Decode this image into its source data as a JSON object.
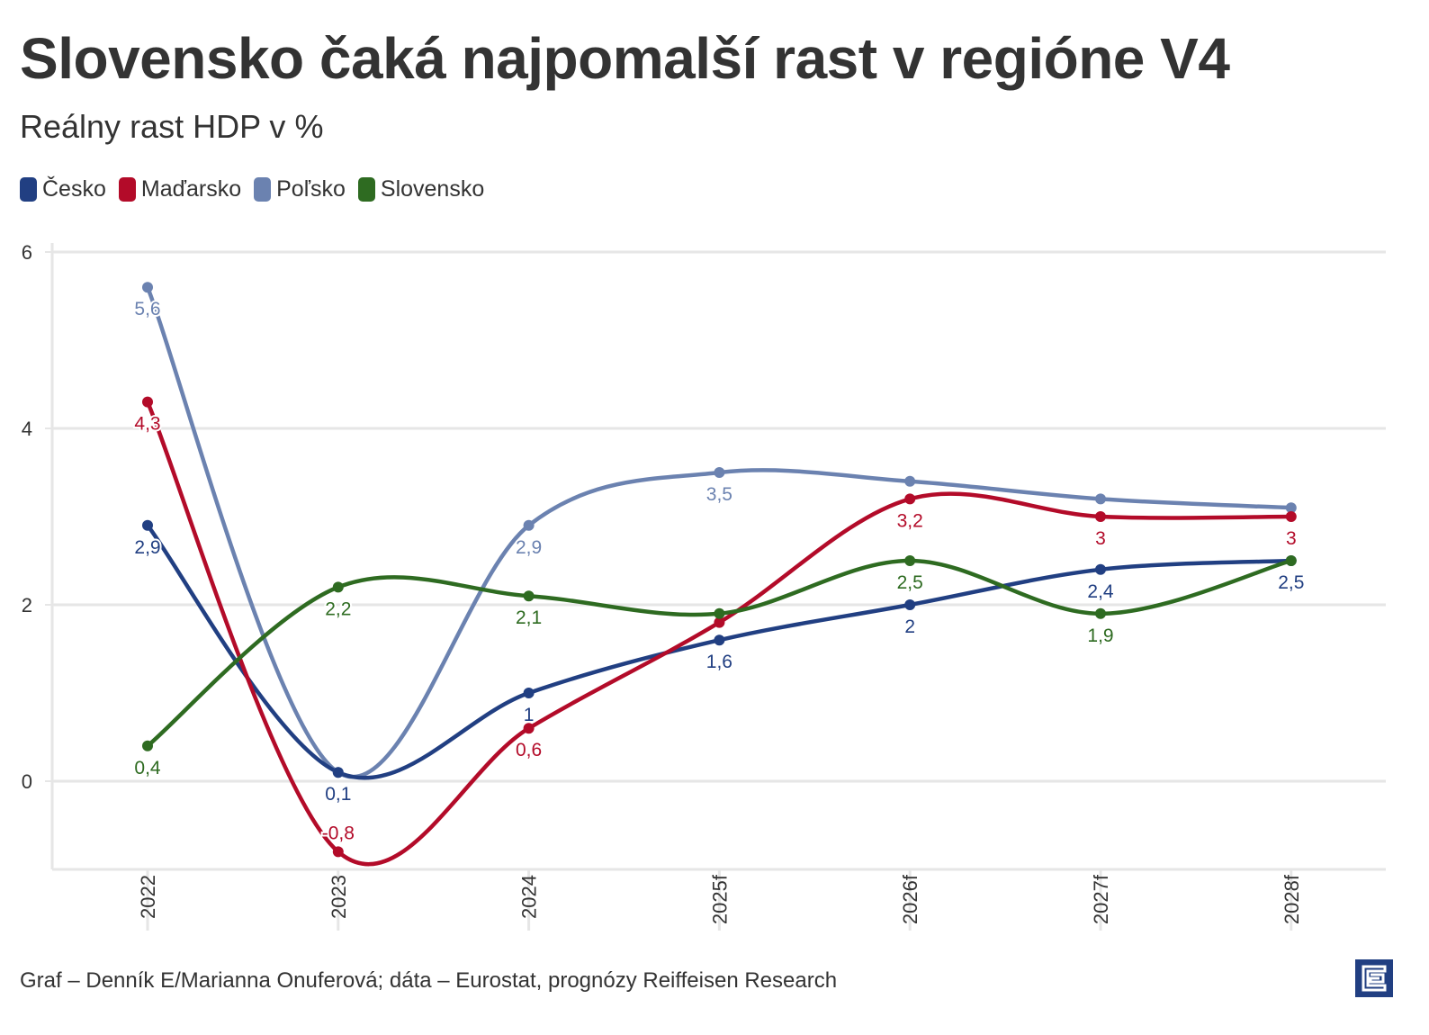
{
  "title": "Slovensko čaká najpomalší rast v regióne V4",
  "subtitle": "Reálny rast HDP v %",
  "footer": "Graf – Denník E/Marianna Onuferová; dáta – Eurostat, prognózy Reiffeisen Research",
  "chart_data": {
    "type": "line",
    "title": "Slovensko čaká najpomalší rast v regióne V4",
    "subtitle": "Reálny rast HDP v %",
    "xlabel": "",
    "ylabel": "",
    "categories": [
      "2022",
      "2023",
      "2024",
      "2025f",
      "2026f",
      "2027f",
      "2028f"
    ],
    "ylim": [
      -1,
      6
    ],
    "yticks": [
      0,
      2,
      4,
      6
    ],
    "ytick_labels": [
      "0",
      "2",
      "4",
      "6"
    ],
    "grid": true,
    "legend_position": "top-left",
    "series": [
      {
        "name": "Česko",
        "color": "#213f82",
        "values": [
          2.9,
          0.1,
          1,
          1.6,
          2,
          2.4,
          2.5
        ],
        "labels": [
          "2,9",
          "0,1",
          "1",
          "1,6",
          "2",
          "2,4",
          "2,5"
        ]
      },
      {
        "name": "Maďarsko",
        "color": "#b30b29",
        "values": [
          4.3,
          -0.8,
          0.6,
          1.8,
          3.2,
          3,
          3
        ],
        "labels": [
          "4,3",
          "-0,8",
          "0,6",
          "",
          "3,2",
          "3",
          "3"
        ]
      },
      {
        "name": "Poľsko",
        "color": "#6b82b0",
        "values": [
          5.6,
          0.1,
          2.9,
          3.5,
          3.4,
          3.2,
          3.1
        ],
        "labels": [
          "5,6",
          "",
          "2,9",
          "3,5",
          "",
          "",
          ""
        ]
      },
      {
        "name": "Slovensko",
        "color": "#2e6b21",
        "values": [
          0.4,
          2.2,
          2.1,
          1.9,
          2.5,
          1.9,
          2.5
        ],
        "labels": [
          "0,4",
          "2,2",
          "2,1",
          "",
          "2,5",
          "1,9",
          ""
        ]
      }
    ]
  }
}
